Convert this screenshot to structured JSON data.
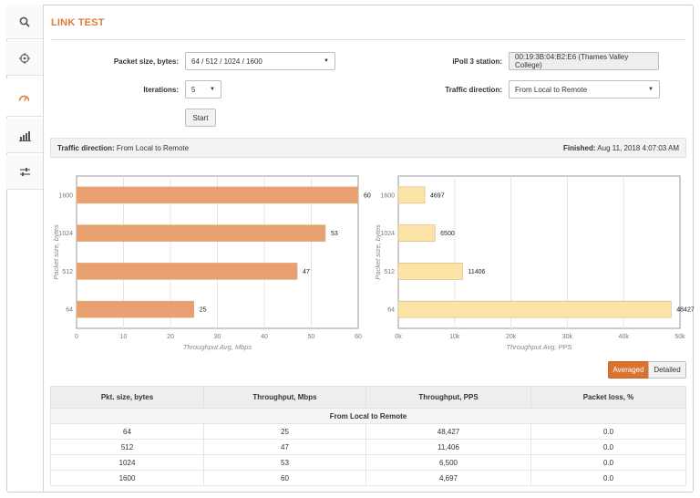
{
  "title": "LINK TEST",
  "sidebar": [
    {
      "icon": "search-icon"
    },
    {
      "icon": "crosshair-icon"
    },
    {
      "icon": "gauge-icon",
      "active": true
    },
    {
      "icon": "bars-chart-icon"
    },
    {
      "icon": "sliders-icon"
    }
  ],
  "form": {
    "packet_size_label": "Packet size, bytes:",
    "packet_size_value": "64 / 512 / 1024 / 1600",
    "iterations_label": "Iterations:",
    "iterations_value": "5",
    "start_label": "Start",
    "station_label": "iPoll 3 station:",
    "station_value": "00:19:3B:04:B2:E6 (Thames Valley College)",
    "direction_label": "Traffic direction:",
    "direction_value": "From Local to Remote"
  },
  "infobar": {
    "direction_label": "Traffic direction:",
    "direction_value": "From Local to Remote",
    "finished_label": "Finished:",
    "finished_value": "Aug 11, 2018 4:07:03 AM"
  },
  "chart_data": [
    {
      "type": "bar",
      "orientation": "horizontal",
      "categories": [
        "1600",
        "1024",
        "512",
        "64"
      ],
      "values": [
        60,
        53,
        47,
        25
      ],
      "xlabel": "Throughput Avg, Mbps",
      "ylabel": "Packet size, bytes",
      "xlim": [
        0,
        60
      ],
      "xticks": [
        "0",
        "10",
        "20",
        "30",
        "40",
        "50",
        "60"
      ],
      "data_labels": [
        "60",
        "53",
        "47",
        "25"
      ],
      "color": "#e9a070",
      "grid": true
    },
    {
      "type": "bar",
      "orientation": "horizontal",
      "categories": [
        "1600",
        "1024",
        "512",
        "64"
      ],
      "values": [
        4697,
        6500,
        11406,
        48427
      ],
      "xlabel": "Throughput Avg, PPS",
      "ylabel": "Packet size, bytes",
      "xlim": [
        0,
        50000
      ],
      "xticks": [
        "0k",
        "10k",
        "20k",
        "30k",
        "40k",
        "50k"
      ],
      "data_labels": [
        "4697",
        "6500",
        "11406",
        "48427"
      ],
      "color": "#fce3a6",
      "grid": true
    }
  ],
  "toggle": {
    "averaged": "Averaged",
    "detailed": "Detailed"
  },
  "table": {
    "headers": [
      "Pkt. size, bytes",
      "Throughput, Mbps",
      "Throughput, PPS",
      "Packet loss, %"
    ],
    "group": "From Local to Remote",
    "rows": [
      [
        "64",
        "25",
        "48,427",
        "0.0"
      ],
      [
        "512",
        "47",
        "11,406",
        "0.0"
      ],
      [
        "1024",
        "53",
        "6,500",
        "0.0"
      ],
      [
        "1600",
        "60",
        "4,697",
        "0.0"
      ]
    ]
  },
  "colors": {
    "accent": "#e07b39",
    "bar_mbps": "#e9a070",
    "bar_pps": "#fce3a6"
  }
}
